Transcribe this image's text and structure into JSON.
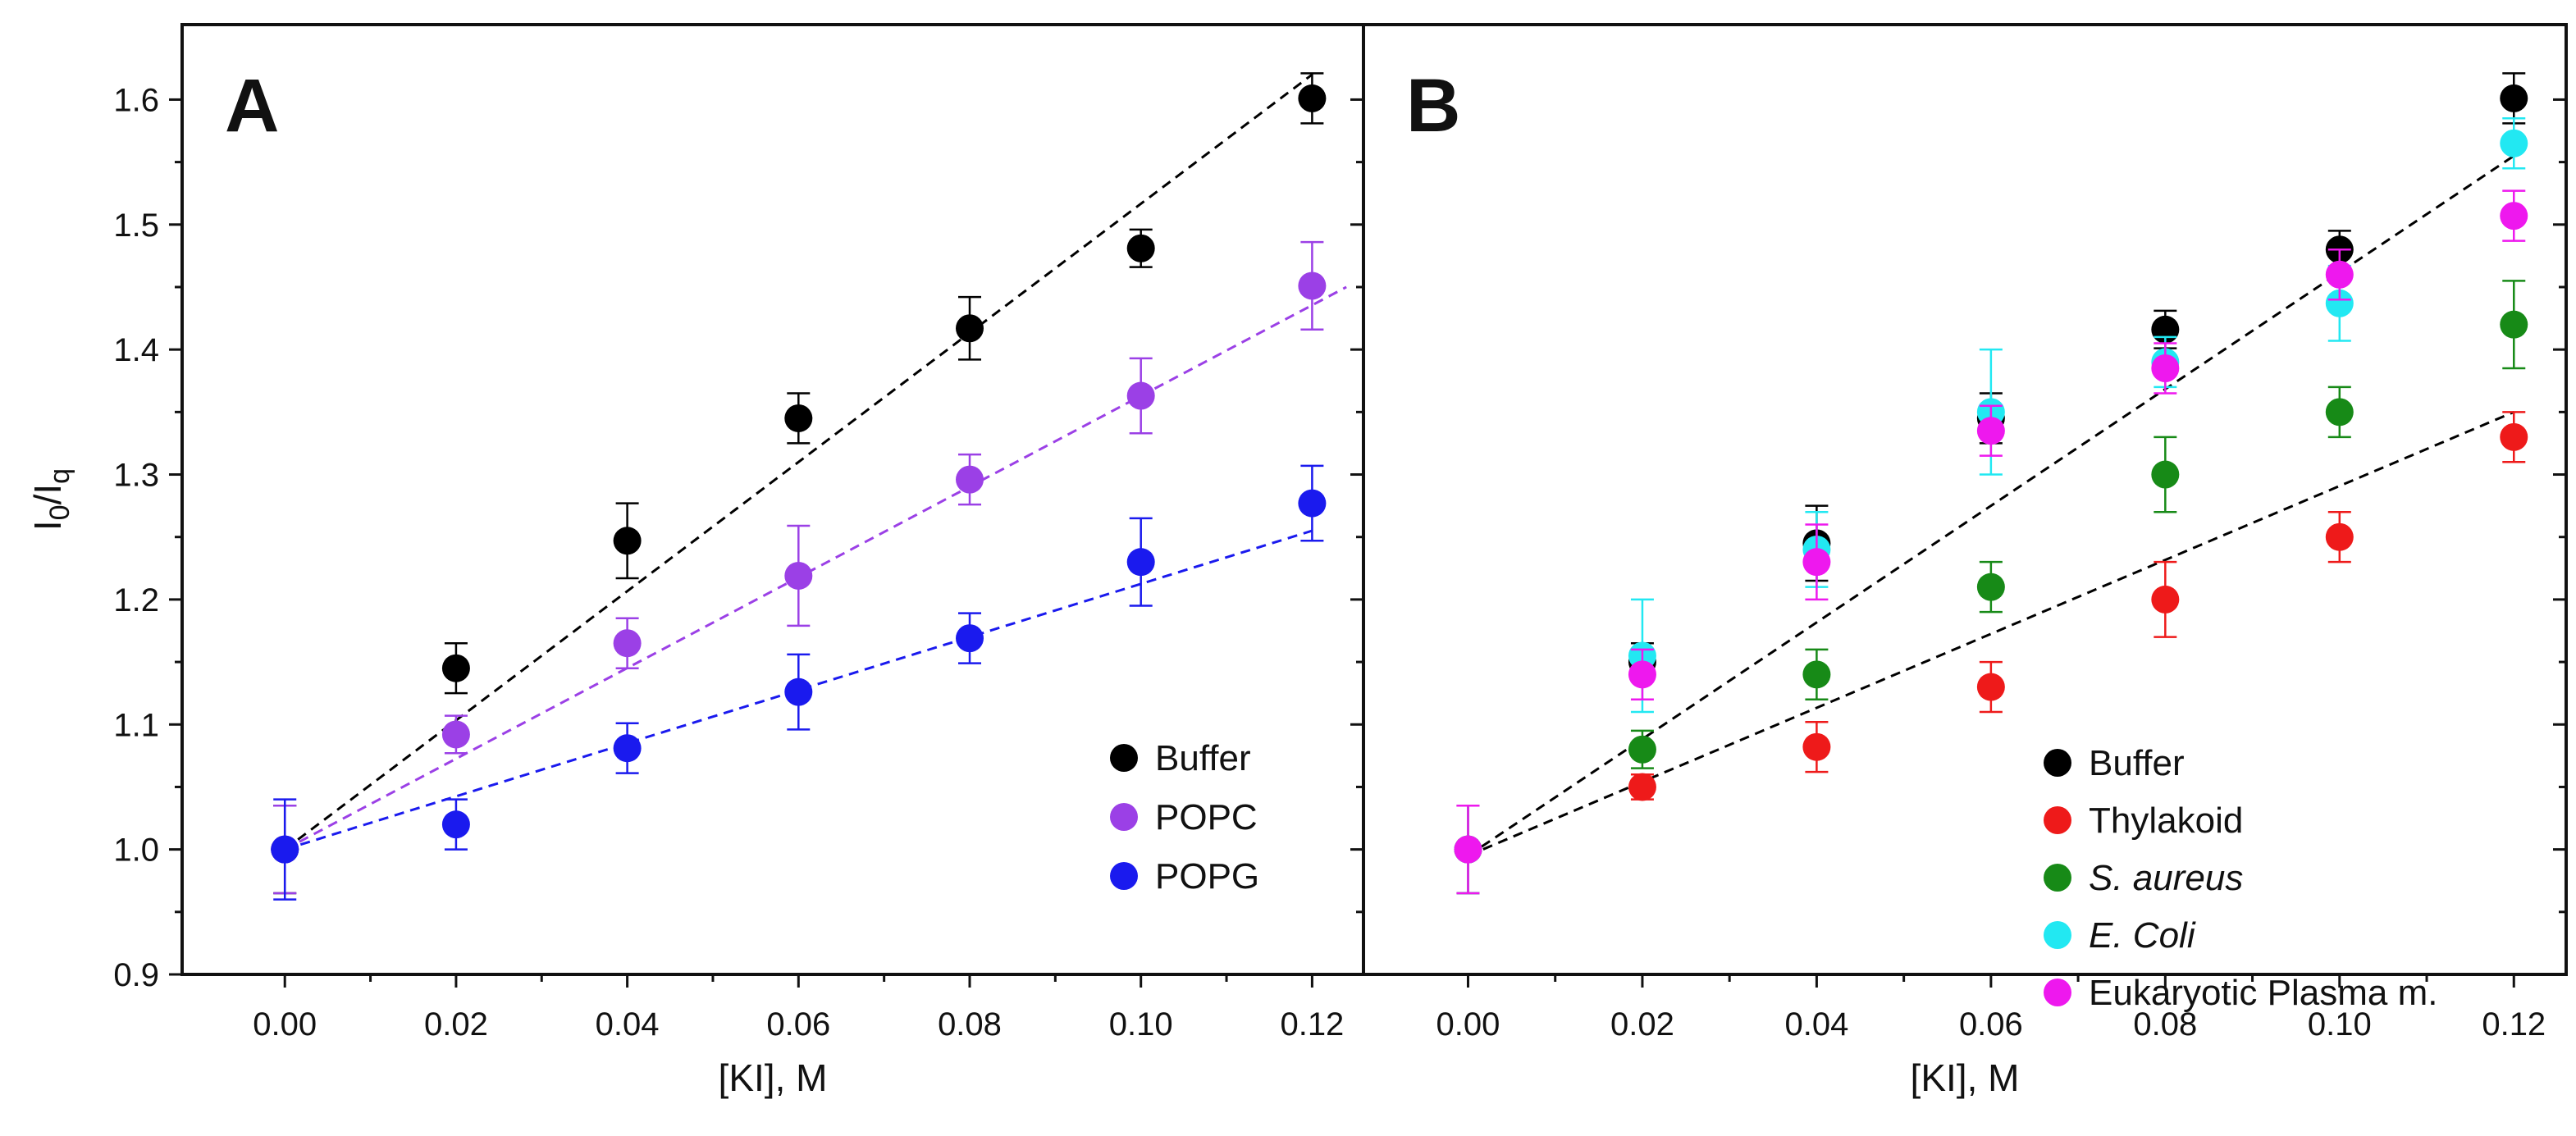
{
  "chart_data": [
    {
      "panel": "A",
      "type": "scatter",
      "xlabel": "[KI], M",
      "ylabel": "I0/Iq",
      "xlim": [
        -0.012,
        0.126
      ],
      "ylim": [
        0.9,
        1.66
      ],
      "xticks": [
        "0.00",
        "0.02",
        "0.04",
        "0.06",
        "0.08",
        "0.10",
        "0.12"
      ],
      "yticks": [
        "0.9",
        "1.0",
        "1.1",
        "1.2",
        "1.3",
        "1.4",
        "1.5",
        "1.6"
      ],
      "legend_position": "bottom-right",
      "series": [
        {
          "name": "Buffer",
          "color": "#000000",
          "x": [
            0.0,
            0.02,
            0.04,
            0.06,
            0.08,
            0.1,
            0.12
          ],
          "y": [
            1.0,
            1.145,
            1.247,
            1.345,
            1.417,
            1.481,
            1.601
          ],
          "err": [
            0.035,
            0.02,
            0.03,
            0.02,
            0.025,
            0.015,
            0.02
          ],
          "fit": {
            "x": [
              0.0,
              0.12
            ],
            "y": [
              1.0,
              1.62
            ],
            "color": "#000000"
          }
        },
        {
          "name": "POPC",
          "color": "#9b40e6",
          "x": [
            0.0,
            0.02,
            0.04,
            0.06,
            0.08,
            0.1,
            0.12
          ],
          "y": [
            1.0,
            1.092,
            1.165,
            1.219,
            1.296,
            1.363,
            1.451
          ],
          "err": [
            0.035,
            0.015,
            0.02,
            0.04,
            0.02,
            0.03,
            0.035
          ],
          "fit": {
            "x": [
              0.0,
              0.124
            ],
            "y": [
              1.0,
              1.45
            ],
            "color": "#9b40e6"
          }
        },
        {
          "name": "POPG",
          "color": "#1a1aee",
          "x": [
            0.0,
            0.02,
            0.04,
            0.06,
            0.08,
            0.1,
            0.12
          ],
          "y": [
            1.0,
            1.02,
            1.081,
            1.126,
            1.169,
            1.23,
            1.277
          ],
          "err": [
            0.04,
            0.02,
            0.02,
            0.03,
            0.02,
            0.035,
            0.03
          ],
          "fit": {
            "x": [
              0.0,
              0.12
            ],
            "y": [
              1.0,
              1.255
            ],
            "color": "#1a1aee"
          }
        }
      ]
    },
    {
      "panel": "B",
      "type": "scatter",
      "xlabel": "[KI], M",
      "ylabel": "",
      "xlim": [
        -0.012,
        0.126
      ],
      "ylim": [
        0.9,
        1.66
      ],
      "xticks": [
        "0.00",
        "0.02",
        "0.04",
        "0.06",
        "0.08",
        "0.10",
        "0.12"
      ],
      "yticks": [
        "0.9",
        "1.0",
        "1.1",
        "1.2",
        "1.3",
        "1.4",
        "1.5",
        "1.6"
      ],
      "legend_position": "bottom-right",
      "fits": [
        {
          "x": [
            0.0,
            0.12
          ],
          "y": [
            0.995,
            1.555
          ],
          "color": "#000000"
        },
        {
          "x": [
            0.0,
            0.12
          ],
          "y": [
            0.995,
            1.35
          ],
          "color": "#000000"
        }
      ],
      "series": [
        {
          "name": "Buffer",
          "italic": false,
          "color": "#000000",
          "x": [
            0.0,
            0.02,
            0.04,
            0.06,
            0.08,
            0.1,
            0.12
          ],
          "y": [
            1.0,
            1.15,
            1.245,
            1.345,
            1.416,
            1.48,
            1.601
          ],
          "err": [
            0.035,
            0.015,
            0.03,
            0.02,
            0.015,
            0.015,
            0.02
          ]
        },
        {
          "name": "Thylakoid",
          "italic": false,
          "color": "#ee1a1a",
          "x": [
            0.0,
            0.02,
            0.04,
            0.06,
            0.08,
            0.1,
            0.12
          ],
          "y": [
            1.0,
            1.05,
            1.082,
            1.13,
            1.2,
            1.25,
            1.33
          ],
          "err": [
            0.035,
            0.01,
            0.02,
            0.02,
            0.03,
            0.02,
            0.02
          ]
        },
        {
          "name": "S. aureus",
          "italic": true,
          "color": "#178a17",
          "x": [
            0.0,
            0.02,
            0.04,
            0.06,
            0.08,
            0.1,
            0.12
          ],
          "y": [
            1.0,
            1.08,
            1.14,
            1.21,
            1.3,
            1.35,
            1.42
          ],
          "err": [
            0.035,
            0.015,
            0.02,
            0.02,
            0.03,
            0.02,
            0.035
          ]
        },
        {
          "name": "E. Coli",
          "italic": true,
          "color": "#22e8f2",
          "x": [
            0.0,
            0.02,
            0.04,
            0.06,
            0.08,
            0.1,
            0.12
          ],
          "y": [
            1.0,
            1.155,
            1.24,
            1.35,
            1.39,
            1.437,
            1.565
          ],
          "err": [
            0.035,
            0.045,
            0.03,
            0.05,
            0.02,
            0.03,
            0.02
          ]
        },
        {
          "name": "Eukaryotic Plasma m.",
          "italic": false,
          "color": "#ee18ee",
          "x": [
            0.0,
            0.02,
            0.04,
            0.06,
            0.08,
            0.1,
            0.12
          ],
          "y": [
            1.0,
            1.14,
            1.23,
            1.335,
            1.385,
            1.46,
            1.507
          ],
          "err": [
            0.035,
            0.02,
            0.03,
            0.02,
            0.02,
            0.02,
            0.02
          ]
        }
      ]
    }
  ]
}
